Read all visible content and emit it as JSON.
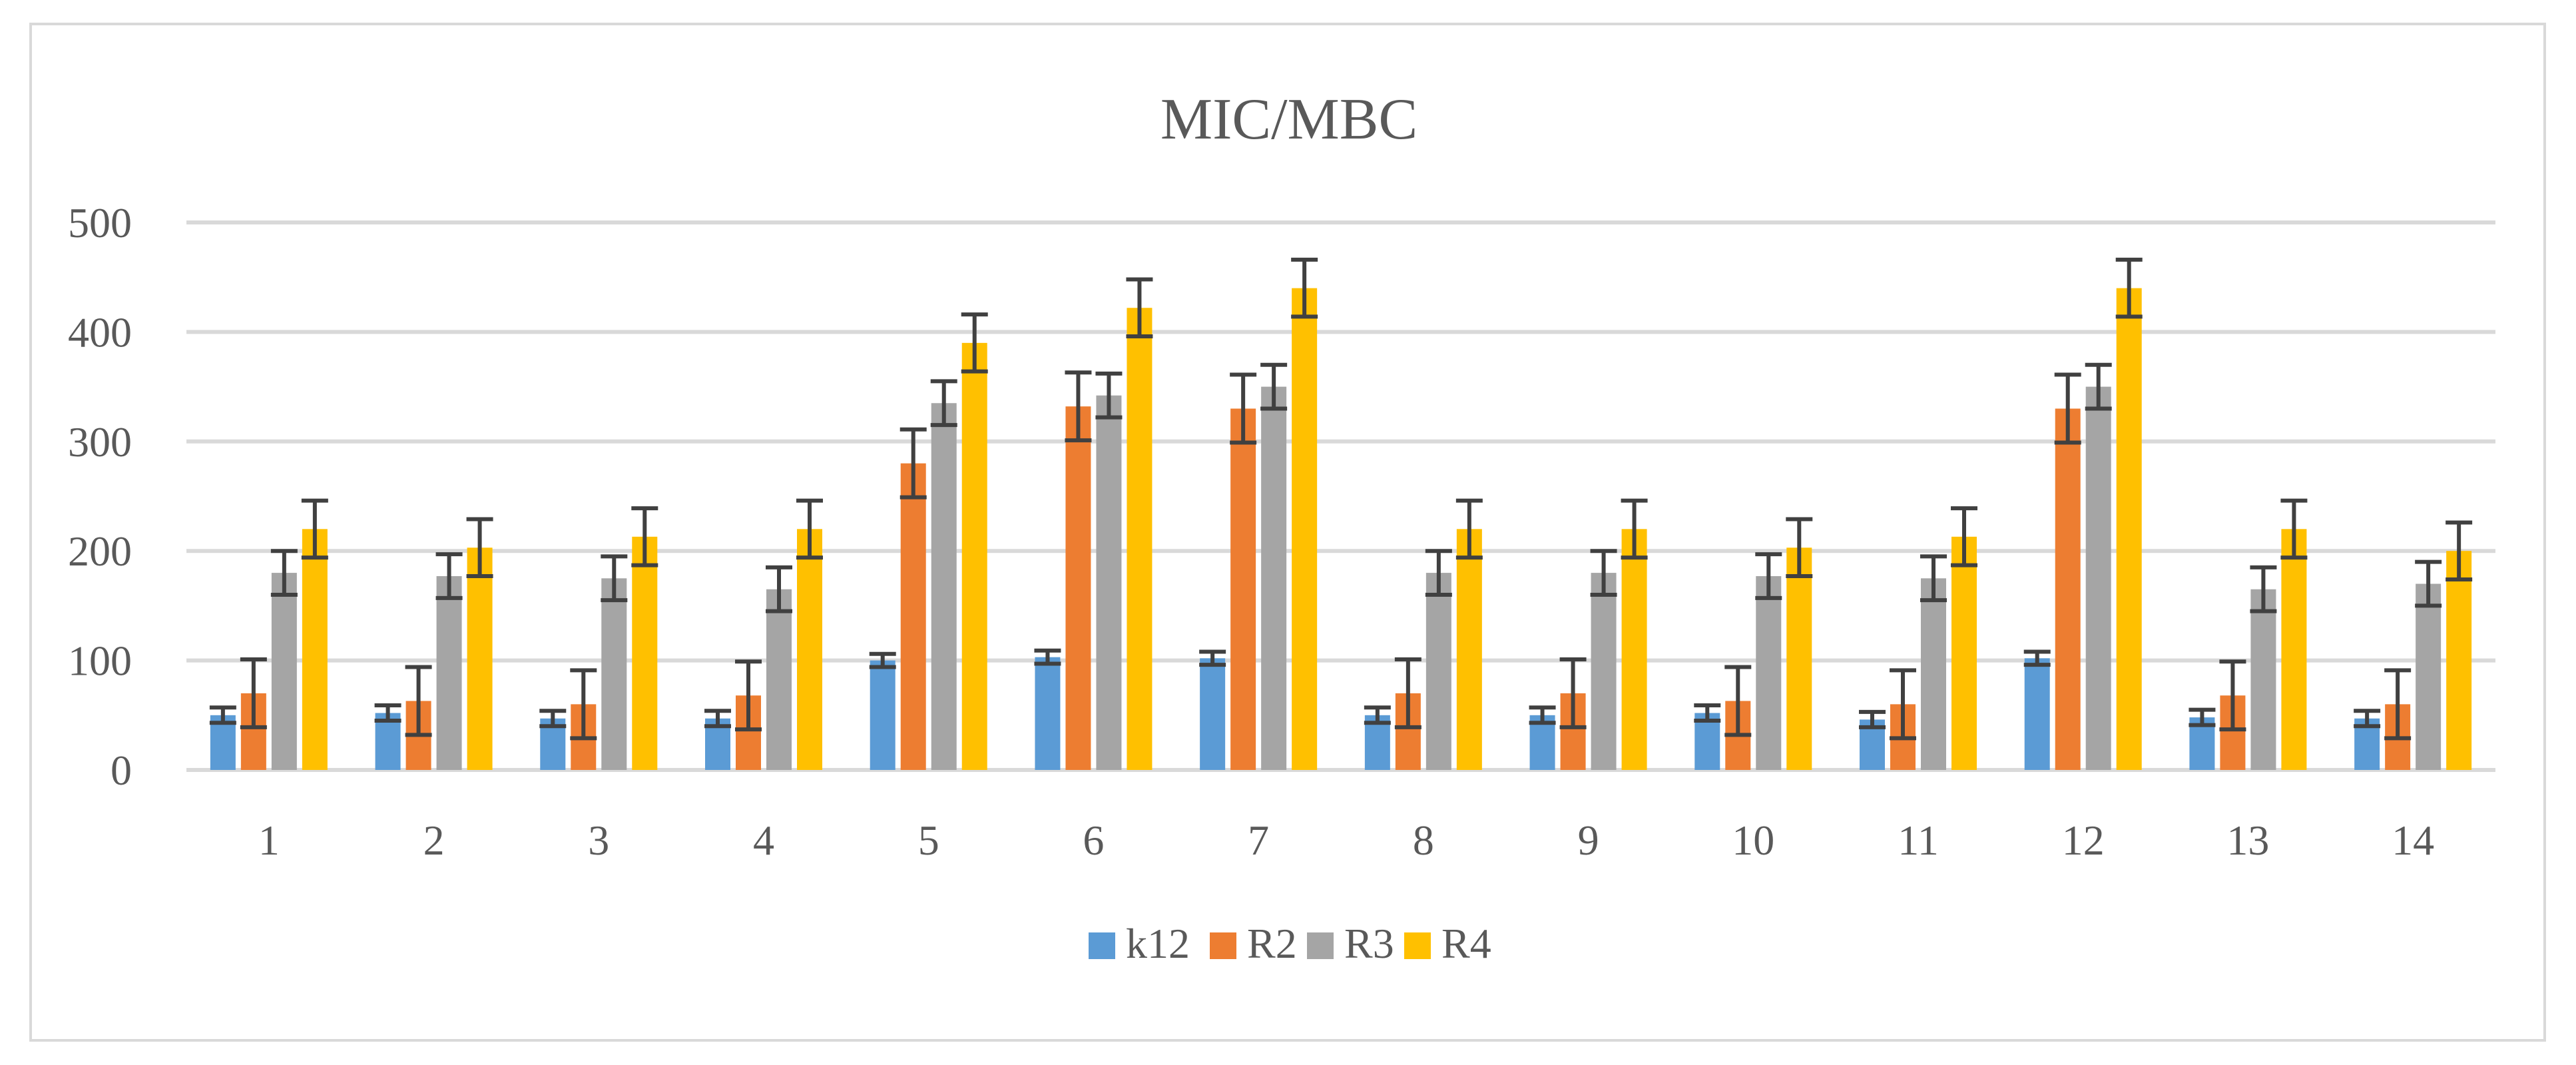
{
  "chart_data": {
    "type": "bar",
    "title": "MIC/MBC",
    "xlabel": "",
    "ylabel": "",
    "ylim": [
      0,
      500
    ],
    "ytick_labels": [
      "0",
      "100",
      "200",
      "300",
      "400",
      "500"
    ],
    "grid": true,
    "legend_position": "bottom",
    "categories": [
      "1",
      "2",
      "3",
      "4",
      "5",
      "6",
      "7",
      "8",
      "9",
      "10",
      "11",
      "12",
      "13",
      "14"
    ],
    "series": [
      {
        "name": "k12",
        "color": "#5b9bd5",
        "values": [
          50,
          52,
          47,
          47,
          100,
          103,
          102,
          50,
          50,
          52,
          46,
          102,
          48,
          47
        ],
        "errors": [
          7,
          7,
          7,
          7,
          6,
          6,
          6,
          7,
          7,
          7,
          7,
          6,
          7,
          7
        ]
      },
      {
        "name": "R2",
        "color": "#ed7d31",
        "values": [
          70,
          63,
          60,
          68,
          280,
          332,
          330,
          70,
          70,
          63,
          60,
          330,
          68,
          60
        ],
        "errors": [
          31,
          31,
          31,
          31,
          31,
          31,
          31,
          31,
          31,
          31,
          31,
          31,
          31,
          31
        ]
      },
      {
        "name": "R3",
        "color": "#a5a5a5",
        "values": [
          180,
          177,
          175,
          165,
          335,
          342,
          350,
          180,
          180,
          177,
          175,
          350,
          165,
          170
        ],
        "errors": [
          20,
          20,
          20,
          20,
          20,
          20,
          20,
          20,
          20,
          20,
          20,
          20,
          20,
          20
        ]
      },
      {
        "name": "R4",
        "color": "#ffc000",
        "values": [
          220,
          203,
          213,
          220,
          390,
          422,
          440,
          220,
          220,
          203,
          213,
          440,
          220,
          200
        ],
        "errors": [
          26,
          26,
          26,
          26,
          26,
          26,
          26,
          26,
          26,
          26,
          26,
          26,
          26,
          26
        ]
      }
    ],
    "gridline_color": "#d9d9d9",
    "error_bar_color": "#404040"
  }
}
